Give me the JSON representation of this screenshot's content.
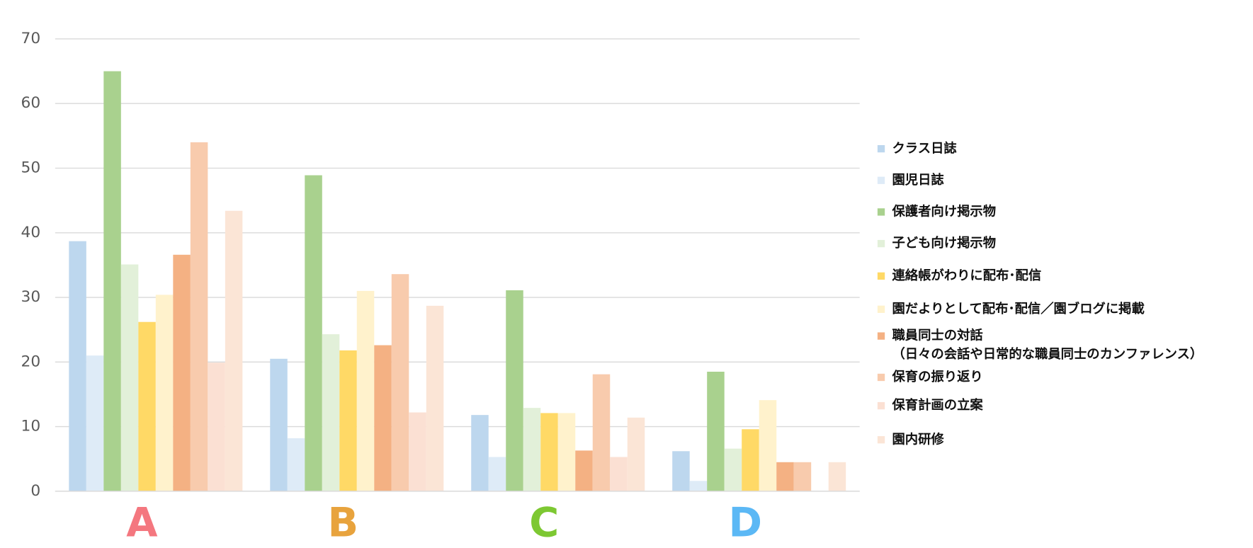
{
  "chart_data": {
    "type": "bar",
    "categories": [
      "A",
      "B",
      "C",
      "D"
    ],
    "category_colors": [
      "#f4777f",
      "#e8a33d",
      "#7dc832",
      "#5bb8f5"
    ],
    "series": [
      {
        "name": "クラス日誌",
        "color": "#bdd7ee",
        "values": [
          38.7,
          20.5,
          11.8,
          6.2
        ]
      },
      {
        "name": "園児日誌",
        "color": "#deebf7",
        "values": [
          21,
          8.2,
          5.3,
          1.6
        ]
      },
      {
        "name": "保護者向け掲示物",
        "color": "#a9d18e",
        "values": [
          65,
          48.9,
          31.1,
          18.5
        ]
      },
      {
        "name": "子ども向け掲示物",
        "color": "#e2f0d9",
        "values": [
          35.1,
          24.3,
          12.9,
          6.6
        ]
      },
      {
        "name": "連絡帳がわりに配布･配信",
        "color": "#ffd966",
        "values": [
          26.2,
          21.8,
          12.1,
          9.6
        ]
      },
      {
        "name": "園だよりとして配布･配信／園ブログに掲載",
        "color": "#fff2cc",
        "values": [
          30.4,
          31,
          12.1,
          14.1
        ]
      },
      {
        "name": "職員同士の対話\n（日々の会話や日常的な職員同士のカンファレンス）",
        "color": "#f4b183",
        "values": [
          36.6,
          22.6,
          6.3,
          4.5
        ]
      },
      {
        "name": "保育の振り返り",
        "color": "#f8cbad",
        "values": [
          54,
          33.6,
          18.1,
          4.5
        ]
      },
      {
        "name": "保育計画の立案",
        "color": "#fbe0d3",
        "values": [
          19.9,
          12.2,
          5.3,
          0
        ]
      },
      {
        "name": "園内研修",
        "color": "#fbe5d6",
        "values": [
          43.4,
          28.7,
          11.4,
          4.5
        ]
      }
    ],
    "ylim": [
      0,
      70
    ],
    "yticks": [
      0,
      10,
      20,
      30,
      40,
      50,
      60,
      70
    ],
    "grid": true,
    "legend": "right"
  }
}
